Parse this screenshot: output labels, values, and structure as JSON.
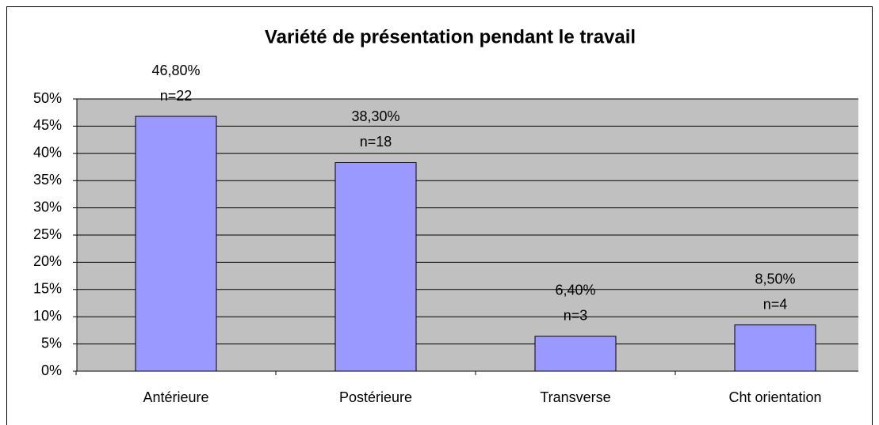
{
  "chart_data": {
    "type": "bar",
    "title": "Variété de présentation pendant le travail",
    "categories": [
      "Antérieure",
      "Postérieure",
      "Transverse",
      "Cht orientation"
    ],
    "values": [
      46.8,
      38.3,
      6.4,
      8.5
    ],
    "value_labels": [
      "46,80%",
      "38,30%",
      "6,40%",
      "8,50%"
    ],
    "count_labels": [
      "n=22",
      "n=18",
      "n=3",
      "n=4"
    ],
    "color": "#9999ff",
    "ylim": [
      0,
      50
    ],
    "yticks": [
      {
        "value": 0,
        "label": "0%"
      },
      {
        "value": 5,
        "label": "5%"
      },
      {
        "value": 10,
        "label": "10%"
      },
      {
        "value": 15,
        "label": "15%"
      },
      {
        "value": 20,
        "label": "20%"
      },
      {
        "value": 25,
        "label": "25%"
      },
      {
        "value": 30,
        "label": "30%"
      },
      {
        "value": 35,
        "label": "35%"
      },
      {
        "value": 40,
        "label": "40%"
      },
      {
        "value": 45,
        "label": "45%"
      },
      {
        "value": 50,
        "label": "50%"
      }
    ],
    "grid": true
  }
}
